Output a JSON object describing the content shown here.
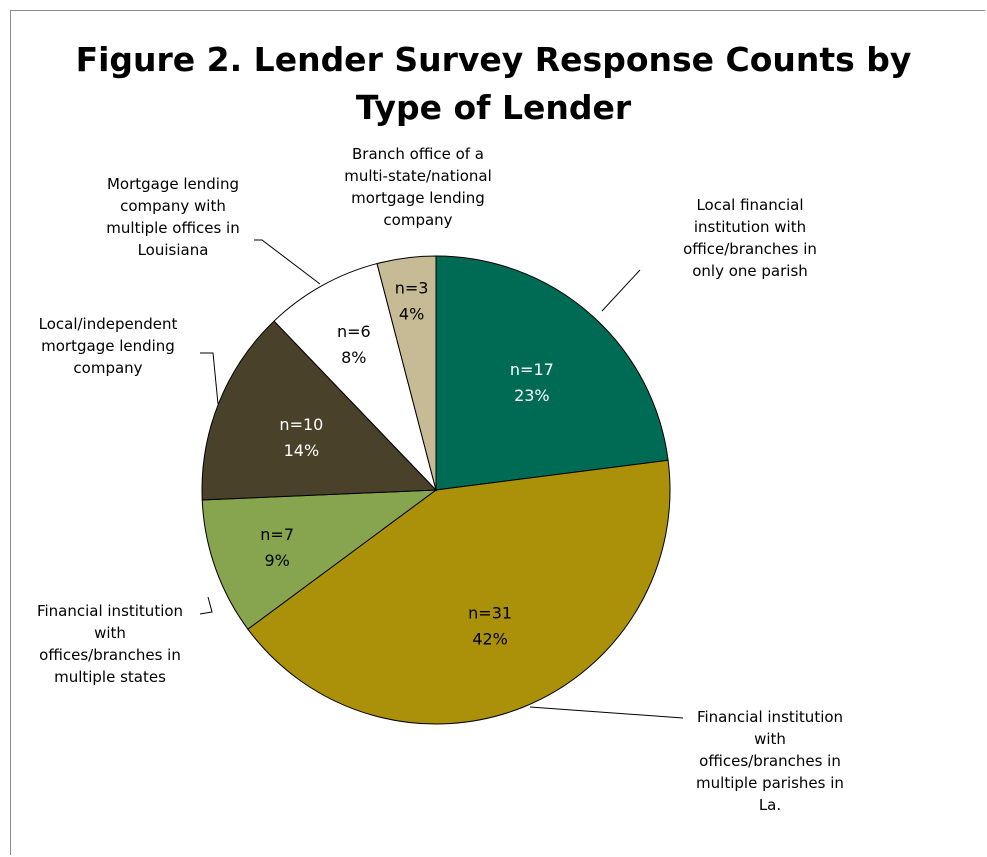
{
  "chart_data": {
    "type": "pie",
    "title": "Figure 2.  Lender Survey Response Counts by\nType of Lender",
    "slices": [
      {
        "label": "Local financial institution with office/branches in only one parish",
        "n": "n=17",
        "pct": "23%",
        "value": 17,
        "color": "#006B54",
        "text_color": "#ffffff"
      },
      {
        "label": "Financial institution with offices/branches in multiple parishes in La.",
        "n": "n=31",
        "pct": "42%",
        "value": 31,
        "color": "#AB9109",
        "text_color": "#000000"
      },
      {
        "label": "Financial institution with offices/branches in multiple states",
        "n": "n=7",
        "pct": "9%",
        "value": 7,
        "color": "#87A44F",
        "text_color": "#000000"
      },
      {
        "label": "Local/independent mortgage lending company",
        "n": "n=10",
        "pct": "14%",
        "value": 10,
        "color": "#4A412A",
        "text_color": "#ffffff"
      },
      {
        "label": "Mortgage lending company with multiple offices in Louisiana",
        "n": "n=6",
        "pct": "8%",
        "value": 6,
        "color": "#ffffff",
        "text_color": "#000000"
      },
      {
        "label": "Branch office of a multi-state/national mortgage lending company",
        "n": "n=3",
        "pct": "4%",
        "value": 3,
        "color": "#C7BB96",
        "text_color": "#000000"
      }
    ]
  }
}
